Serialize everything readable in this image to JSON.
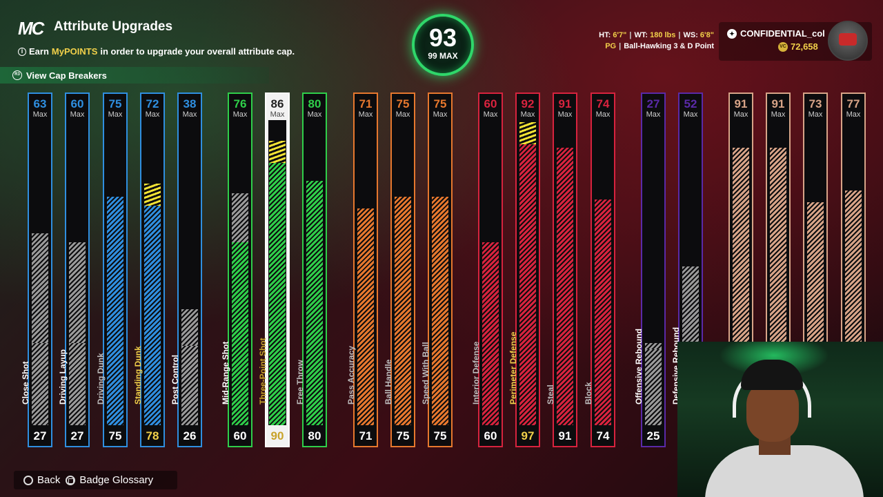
{
  "header": {
    "logo": "MC",
    "title": "Attribute Upgrades",
    "earn_prefix": "Earn",
    "earn_highlight": "MyPOINTS",
    "earn_suffix": "in order to upgrade your overall attribute cap.",
    "cap_breakers_label": "View Cap Breakers"
  },
  "overall": {
    "value": "93",
    "max_label": "99 MAX"
  },
  "player": {
    "ht_label": "HT:",
    "ht": "6'7\"",
    "wt_label": "WT:",
    "wt": "180 lbs",
    "ws_label": "WS:",
    "ws": "6'8\"",
    "position": "PG",
    "archetype": "Ball-Hawking 3 & D Point"
  },
  "account": {
    "gamertag": "CONFIDENTIAL_col",
    "vc": "72,658"
  },
  "max_word": "Max",
  "colors": {
    "finishing": "#2f8fe0",
    "shooting": "#2fcf4a",
    "playmaking": "#e7782e",
    "defense": "#d8233e",
    "rebounding": "#5a2aa8",
    "physical": "#d8a488",
    "locked": "#9a9a9a",
    "upgrade": "#f2e234"
  },
  "attributes": [
    {
      "name": "Close Shot",
      "current": "27",
      "cap": "63",
      "group": "finishing",
      "state": "locked"
    },
    {
      "name": "Driving Layup",
      "current": "27",
      "cap": "60",
      "group": "finishing",
      "state": "locked"
    },
    {
      "name": "Driving Dunk",
      "current": "75",
      "cap": "75",
      "group": "finishing",
      "state": "normal"
    },
    {
      "name": "Standing Dunk",
      "current": "78",
      "cap": "72",
      "group": "finishing",
      "state": "upgrade"
    },
    {
      "name": "Post Control",
      "current": "26",
      "cap": "38",
      "group": "finishing",
      "state": "locked"
    },
    {
      "name": "Mid-Range Shot",
      "current": "60",
      "cap": "76",
      "group": "shooting",
      "state": "locked"
    },
    {
      "name": "Three-Point Shot",
      "current": "90",
      "cap": "86",
      "group": "shooting",
      "state": "upgrade",
      "selected": true
    },
    {
      "name": "Free Throw",
      "current": "80",
      "cap": "80",
      "group": "shooting",
      "state": "normal"
    },
    {
      "name": "Pass Accuracy",
      "current": "71",
      "cap": "71",
      "group": "playmaking",
      "state": "normal"
    },
    {
      "name": "Ball Handle",
      "current": "75",
      "cap": "75",
      "group": "playmaking",
      "state": "normal"
    },
    {
      "name": "Speed With Ball",
      "current": "75",
      "cap": "75",
      "group": "playmaking",
      "state": "normal"
    },
    {
      "name": "Interior Defense",
      "current": "60",
      "cap": "60",
      "group": "defense",
      "state": "normal"
    },
    {
      "name": "Perimeter Defense",
      "current": "97",
      "cap": "92",
      "group": "defense",
      "state": "upgrade"
    },
    {
      "name": "Steal",
      "current": "91",
      "cap": "91",
      "group": "defense",
      "state": "normal"
    },
    {
      "name": "Block",
      "current": "74",
      "cap": "74",
      "group": "defense",
      "state": "normal"
    },
    {
      "name": "Offensive Rebound",
      "current": "25",
      "cap": "27",
      "group": "rebounding",
      "state": "locked"
    },
    {
      "name": "Defensive Rebound",
      "current": "",
      "cap": "52",
      "group": "rebounding",
      "state": "locked"
    },
    {
      "name": "",
      "current": "",
      "cap": "91",
      "group": "physical",
      "state": "normal"
    },
    {
      "name": "",
      "current": "",
      "cap": "91",
      "group": "physical",
      "state": "normal"
    },
    {
      "name": "",
      "current": "",
      "cap": "73",
      "group": "physical",
      "state": "normal"
    },
    {
      "name": "",
      "current": "",
      "cap": "77",
      "group": "physical",
      "state": "normal"
    }
  ],
  "footer": {
    "back_label": "Back",
    "glossary_label": "Badge Glossary"
  }
}
